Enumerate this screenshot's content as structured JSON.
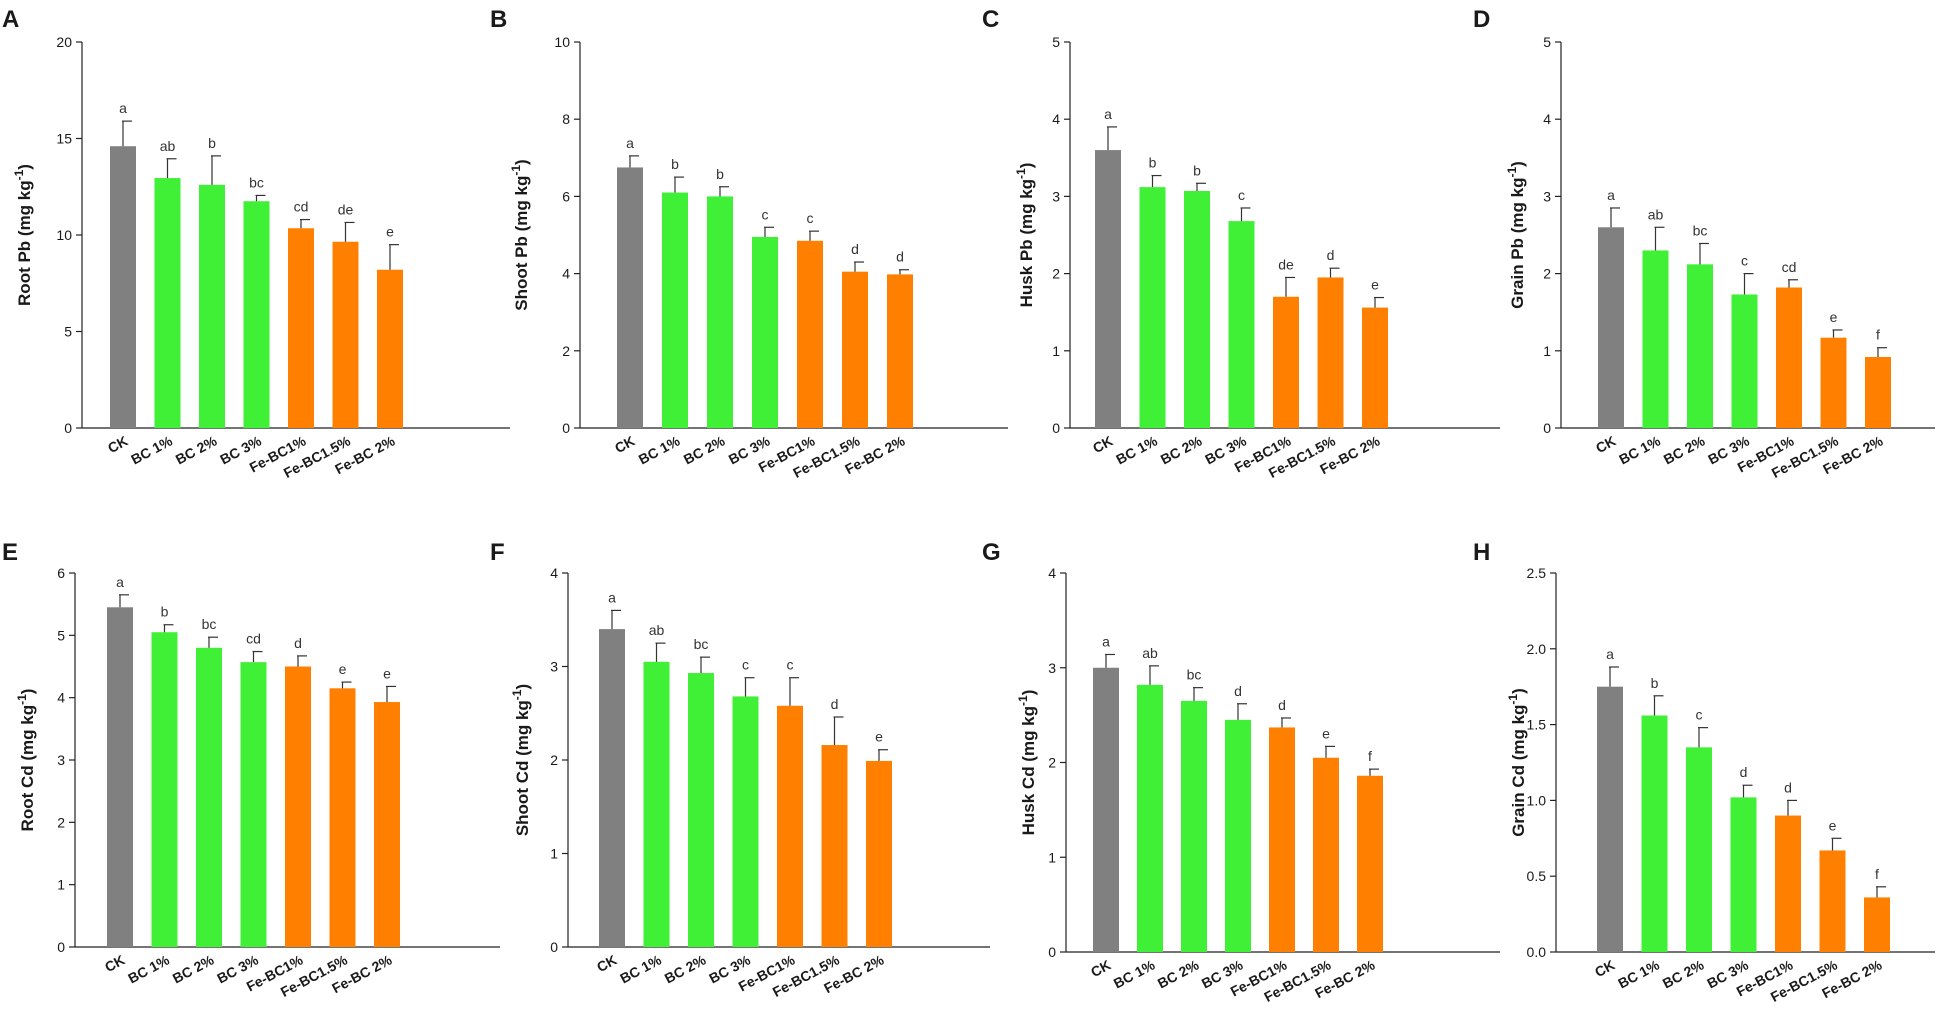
{
  "colors": {
    "CK": "#808080",
    "BC": "#3ff036",
    "FeBC": "#ff8000"
  },
  "chart_data": [
    {
      "panel": "A",
      "type": "bar",
      "ylabel": "Root Pb",
      "ylabel_unit": "(mg kg",
      "ylabel_sup": "-1",
      "ylabel_end": ")",
      "ylim": [
        0,
        20
      ],
      "ticks": [
        "0",
        "5",
        "10",
        "15",
        "20"
      ],
      "categories": [
        "CK",
        "BC 1%",
        "BC 2%",
        "BC 3%",
        "Fe-BC1%",
        "Fe-BC1.5%",
        "Fe-BC 2%"
      ],
      "values": [
        14.6,
        12.95,
        12.6,
        11.75,
        10.35,
        9.65,
        8.2
      ],
      "errors": [
        1.3,
        1.0,
        1.5,
        0.3,
        0.45,
        1.0,
        1.3
      ],
      "letters": [
        "a",
        "ab",
        "b",
        "bc",
        "cd",
        "de",
        "e"
      ]
    },
    {
      "panel": "B",
      "type": "bar",
      "ylabel": "Shoot Pb",
      "ylabel_unit": "(mg kg",
      "ylabel_sup": "-1",
      "ylabel_end": ")",
      "ylim": [
        0,
        10
      ],
      "ticks": [
        "0",
        "2",
        "4",
        "6",
        "8",
        "10"
      ],
      "categories": [
        "CK",
        "BC 1%",
        "BC 2%",
        "BC 3%",
        "Fe-BC1%",
        "Fe-BC1.5%",
        "Fe-BC 2%"
      ],
      "values": [
        6.75,
        6.1,
        6.0,
        4.95,
        4.85,
        4.05,
        3.98
      ],
      "errors": [
        0.3,
        0.4,
        0.25,
        0.25,
        0.25,
        0.25,
        0.12
      ],
      "letters": [
        "a",
        "b",
        "b",
        "c",
        "c",
        "d",
        "d"
      ]
    },
    {
      "panel": "C",
      "type": "bar",
      "ylabel": "Husk Pb",
      "ylabel_unit": "(mg kg",
      "ylabel_sup": "-1",
      "ylabel_end": ")",
      "ylim": [
        0,
        5
      ],
      "ticks": [
        "0",
        "1",
        "2",
        "3",
        "4",
        "5"
      ],
      "categories": [
        "CK",
        "BC 1%",
        "BC 2%",
        "BC 3%",
        "Fe-BC1%",
        "Fe-BC1.5%",
        "Fe-BC 2%"
      ],
      "values": [
        3.6,
        3.12,
        3.07,
        2.68,
        1.7,
        1.95,
        1.56
      ],
      "errors": [
        0.3,
        0.15,
        0.1,
        0.17,
        0.25,
        0.12,
        0.13
      ],
      "letters": [
        "a",
        "b",
        "b",
        "c",
        "de",
        "d",
        "e"
      ]
    },
    {
      "panel": "D",
      "type": "bar",
      "ylabel": "Grain Pb",
      "ylabel_unit": "(mg kg",
      "ylabel_sup": "-1",
      "ylabel_end": ")",
      "ylim": [
        0,
        5
      ],
      "ticks": [
        "0",
        "1",
        "2",
        "3",
        "4",
        "5"
      ],
      "categories": [
        "CK",
        "BC 1%",
        "BC 2%",
        "BC 3%",
        "Fe-BC1%",
        "Fe-BC1.5%",
        "Fe-BC 2%"
      ],
      "values": [
        2.6,
        2.3,
        2.12,
        1.73,
        1.82,
        1.17,
        0.92
      ],
      "errors": [
        0.25,
        0.3,
        0.27,
        0.27,
        0.1,
        0.1,
        0.12
      ],
      "letters": [
        "a",
        "ab",
        "bc",
        "c",
        "cd",
        "e",
        "f"
      ]
    },
    {
      "panel": "E",
      "type": "bar",
      "ylabel": "Root Cd",
      "ylabel_unit": "(mg kg",
      "ylabel_sup": "-1",
      "ylabel_end": ")",
      "ylim": [
        0,
        6
      ],
      "ticks": [
        "0",
        "1",
        "2",
        "3",
        "4",
        "5",
        "6"
      ],
      "categories": [
        "CK",
        "BC 1%",
        "BC 2%",
        "BC 3%",
        "Fe-BC1%",
        "Fe-BC1.5%",
        "Fe-BC 2%"
      ],
      "values": [
        5.45,
        5.05,
        4.8,
        4.57,
        4.5,
        4.15,
        3.93
      ],
      "errors": [
        0.2,
        0.12,
        0.17,
        0.17,
        0.17,
        0.1,
        0.25
      ],
      "letters": [
        "a",
        "b",
        "bc",
        "cd",
        "d",
        "e",
        "e"
      ]
    },
    {
      "panel": "F",
      "type": "bar",
      "ylabel": "Shoot Cd",
      "ylabel_unit": "(mg kg",
      "ylabel_sup": "-1",
      "ylabel_end": ")",
      "ylim": [
        0,
        4
      ],
      "ticks": [
        "0",
        "1",
        "2",
        "3",
        "4"
      ],
      "categories": [
        "CK",
        "BC 1%",
        "BC 2%",
        "BC 3%",
        "Fe-BC1%",
        "Fe-BC1.5%",
        "Fe-BC 2%"
      ],
      "values": [
        3.4,
        3.05,
        2.93,
        2.68,
        2.58,
        2.16,
        1.99
      ],
      "errors": [
        0.2,
        0.2,
        0.17,
        0.2,
        0.3,
        0.3,
        0.12
      ],
      "letters": [
        "a",
        "ab",
        "bc",
        "c",
        "c",
        "d",
        "e"
      ]
    },
    {
      "panel": "G",
      "type": "bar",
      "ylabel": "Husk Cd",
      "ylabel_unit": "(mg kg",
      "ylabel_sup": "-1",
      "ylabel_end": ")",
      "ylim": [
        0,
        4
      ],
      "ticks": [
        "0",
        "1",
        "2",
        "3",
        "4"
      ],
      "categories": [
        "CK",
        "BC 1%",
        "BC 2%",
        "BC 3%",
        "Fe-BC1%",
        "Fe-BC1.5%",
        "Fe-BC 2%"
      ],
      "values": [
        3.0,
        2.82,
        2.65,
        2.45,
        2.37,
        2.05,
        1.86
      ],
      "errors": [
        0.14,
        0.2,
        0.14,
        0.17,
        0.1,
        0.12,
        0.07
      ],
      "letters": [
        "a",
        "ab",
        "bc",
        "d",
        "d",
        "e",
        "f"
      ]
    },
    {
      "panel": "H",
      "type": "bar",
      "ylabel": "Grain Cd",
      "ylabel_unit": "(mg kg",
      "ylabel_sup": "-1",
      "ylabel_end": ")",
      "ylim": [
        0,
        2.5
      ],
      "ticks": [
        "0.0",
        "0.5",
        "1.0",
        "1.5",
        "2.0",
        "2.5"
      ],
      "categories": [
        "CK",
        "BC 1%",
        "BC 2%",
        "BC 3%",
        "Fe-BC1%",
        "Fe-BC1.5%",
        "Fe-BC 2%"
      ],
      "values": [
        1.75,
        1.56,
        1.35,
        1.02,
        0.9,
        0.67,
        0.36
      ],
      "errors": [
        0.13,
        0.13,
        0.13,
        0.08,
        0.1,
        0.08,
        0.07
      ],
      "letters": [
        "a",
        "b",
        "c",
        "d",
        "d",
        "e",
        "f"
      ]
    }
  ]
}
